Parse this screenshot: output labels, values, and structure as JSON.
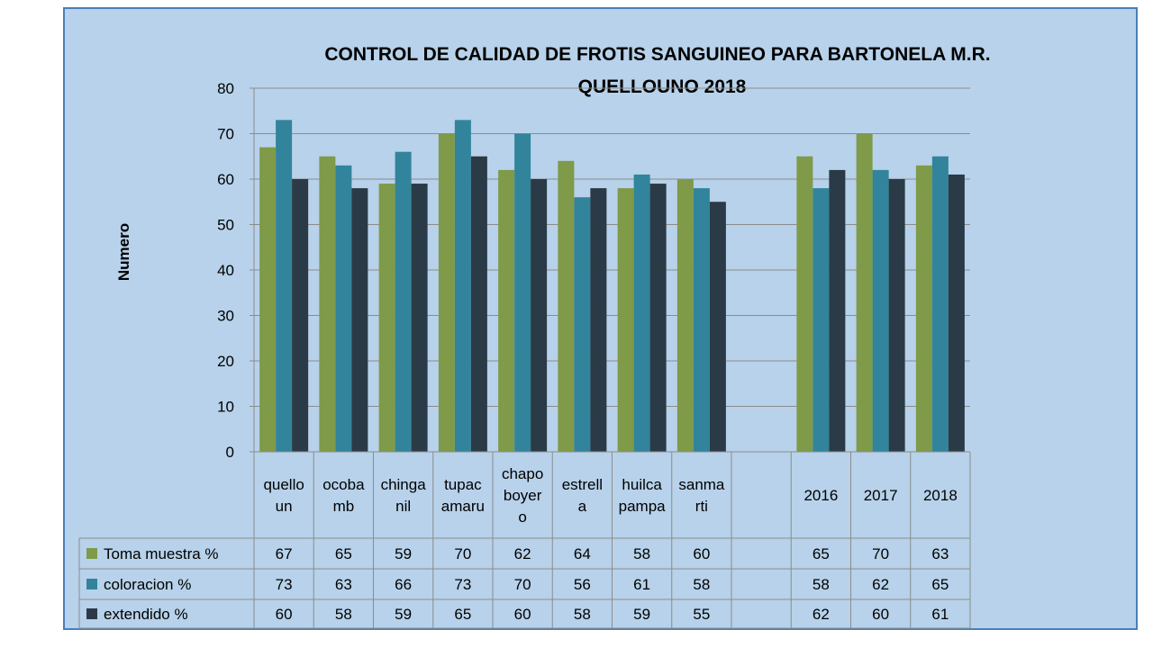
{
  "chart_data": {
    "type": "bar",
    "title_line1": "CONTROL DE CALIDAD DE FROTIS SANGUINEO PARA BARTONELA M.R.",
    "title_line2": "QUELLOUNO 2018",
    "ylabel": "Numero",
    "ylim": [
      0,
      80
    ],
    "yticks": [
      0,
      10,
      20,
      30,
      40,
      50,
      60,
      70,
      80
    ],
    "grid": true,
    "legend": "data-table-left",
    "categories": [
      [
        "quello",
        "un"
      ],
      [
        "ocoba",
        "mb"
      ],
      [
        "chinga",
        "nil"
      ],
      [
        "tupac",
        "amaru"
      ],
      [
        "chapo",
        "boyer",
        "o"
      ],
      [
        "estrell",
        "a"
      ],
      [
        "huilca",
        "pampa"
      ],
      [
        "sanma",
        "rti"
      ],
      [],
      [
        "2016"
      ],
      [
        "2017"
      ],
      [
        "2018"
      ]
    ],
    "series": [
      {
        "name": "Toma muestra %",
        "color": "#7f9a48",
        "values": [
          67,
          65,
          59,
          70,
          62,
          64,
          58,
          60,
          null,
          65,
          70,
          63
        ]
      },
      {
        "name": "coloracion %",
        "color": "#31849b",
        "values": [
          73,
          63,
          66,
          73,
          70,
          56,
          61,
          58,
          null,
          58,
          62,
          65
        ]
      },
      {
        "name": "extendido %",
        "color": "#2a3a46",
        "values": [
          60,
          58,
          59,
          65,
          60,
          58,
          59,
          55,
          null,
          62,
          60,
          61
        ]
      }
    ]
  }
}
